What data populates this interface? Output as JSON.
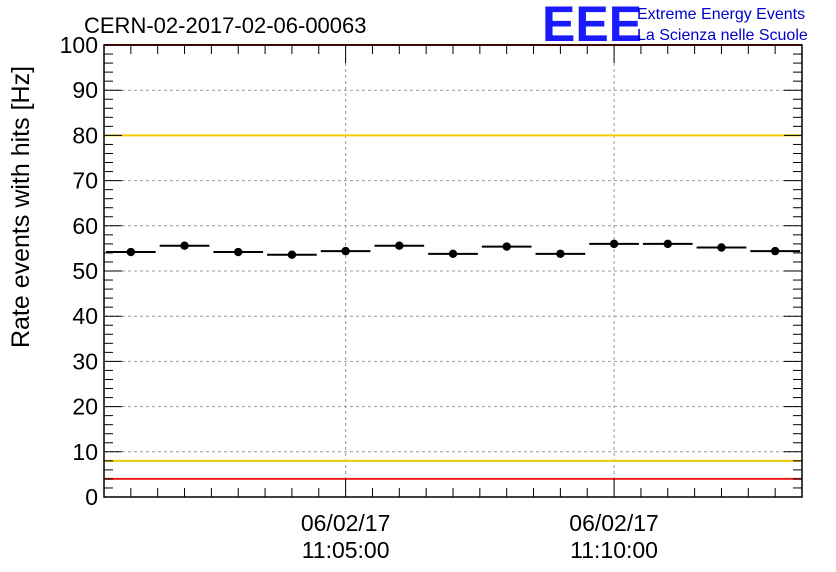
{
  "chart_data": {
    "type": "scatter",
    "title": "CERN-02-2017-02-06-00063",
    "ylabel": "Rate events with hits [Hz]",
    "xlabel": "",
    "ylim": [
      0,
      100
    ],
    "y_ticks": [
      0,
      10,
      20,
      30,
      40,
      50,
      60,
      70,
      80,
      90,
      100
    ],
    "x_tick_labels": [
      {
        "date": "06/02/17",
        "time": "11:05:00",
        "bin": 4.5
      },
      {
        "date": "06/02/17",
        "time": "11:10:00",
        "bin": 9.5
      }
    ],
    "x_bins": 13,
    "grid": true,
    "series": [
      {
        "values": [
          54.2,
          55.6,
          54.2,
          53.6,
          54.4,
          55.6,
          53.8,
          55.4,
          53.8,
          56.0,
          56.0,
          55.2,
          54.4
        ]
      }
    ],
    "reference_lines": [
      {
        "y": 100,
        "color": "#ee2222"
      },
      {
        "y": 80,
        "color": "#f0cc00"
      },
      {
        "y": 8,
        "color": "#f0cc00"
      },
      {
        "y": 4,
        "color": "#ee2222"
      }
    ]
  },
  "logo": {
    "mark": "EEE",
    "line1": "Extreme Energy Events",
    "line2": "La Scienza nelle Scuole",
    "color": "#1a1aff"
  }
}
